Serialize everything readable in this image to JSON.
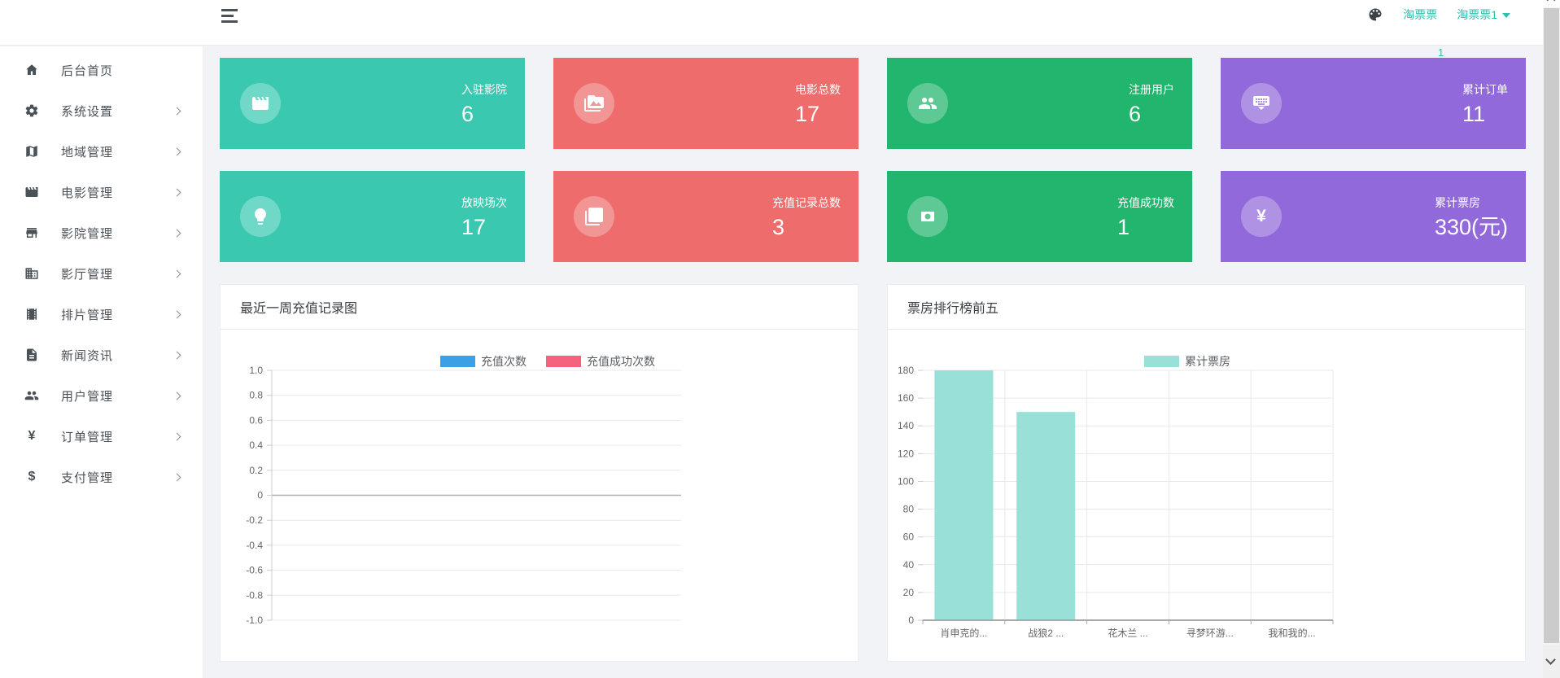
{
  "topbar": {
    "site_link": "淘票票",
    "user_menu": "淘票票1"
  },
  "sidebar": {
    "items": [
      {
        "label": "后台首页",
        "icon": "home-icon",
        "expandable": false
      },
      {
        "label": "系统设置",
        "icon": "gear-icon",
        "expandable": true
      },
      {
        "label": "地域管理",
        "icon": "map-icon",
        "expandable": true
      },
      {
        "label": "电影管理",
        "icon": "clapper-icon",
        "expandable": true
      },
      {
        "label": "影院管理",
        "icon": "storefront-icon",
        "expandable": true
      },
      {
        "label": "影厅管理",
        "icon": "building-icon",
        "expandable": true
      },
      {
        "label": "排片管理",
        "icon": "filmstrip-icon",
        "expandable": true
      },
      {
        "label": "新闻资讯",
        "icon": "news-icon",
        "expandable": true
      },
      {
        "label": "用户管理",
        "icon": "users-icon",
        "expandable": true
      },
      {
        "label": "订单管理",
        "icon": "yen-icon",
        "expandable": true
      },
      {
        "label": "支付管理",
        "icon": "dollar-icon",
        "expandable": true
      }
    ]
  },
  "badge": "1",
  "stat_cards": [
    {
      "label": "入驻影院",
      "value": "6",
      "color": "#3ac9b0",
      "icon": "clapper-icon"
    },
    {
      "label": "电影总数",
      "value": "17",
      "color": "#ee6c6c",
      "icon": "media-icon"
    },
    {
      "label": "注册用户",
      "value": "6",
      "color": "#22b56e",
      "icon": "users-icon"
    },
    {
      "label": "累计订单",
      "value": "11",
      "color": "#9269da",
      "icon": "keyboard-icon"
    },
    {
      "label": "放映场次",
      "value": "17",
      "color": "#3ac9b0",
      "icon": "bulb-icon"
    },
    {
      "label": "充值记录总数",
      "value": "3",
      "color": "#ee6c6c",
      "icon": "photo-stack-icon"
    },
    {
      "label": "充值成功数",
      "value": "1",
      "color": "#22b56e",
      "icon": "coin-icon"
    },
    {
      "label": "累计票房",
      "value": "330(元)",
      "color": "#9269da",
      "icon": "yen-icon"
    }
  ],
  "chart_data": [
    {
      "type": "line",
      "title": "最近一周充值记录图",
      "x": [],
      "series": [
        {
          "name": "充值次数",
          "color": "#3ca0e6",
          "values": []
        },
        {
          "name": "充值成功次数",
          "color": "#f5617f",
          "values": []
        }
      ],
      "ylim": [
        -1.0,
        1.0
      ],
      "yticks": [
        "1.0",
        "0.8",
        "0.6",
        "0.4",
        "0.2",
        "0",
        "-0.2",
        "-0.4",
        "-0.6",
        "-0.8",
        "-1.0"
      ],
      "legend_position": "top",
      "grid": true
    },
    {
      "type": "bar",
      "title": "票房排行榜前五",
      "categories": [
        "肖申克的...",
        "战狼2 ...",
        "花木兰 ...",
        "寻梦环游...",
        "我和我的..."
      ],
      "series": [
        {
          "name": "累计票房",
          "color": "#98e0d8",
          "values": [
            180,
            150,
            0,
            0,
            0
          ]
        }
      ],
      "ylim": [
        0,
        180
      ],
      "yticks": [
        "180",
        "160",
        "140",
        "120",
        "100",
        "80",
        "60",
        "40",
        "20",
        "0"
      ],
      "legend_position": "top",
      "grid": true
    }
  ]
}
